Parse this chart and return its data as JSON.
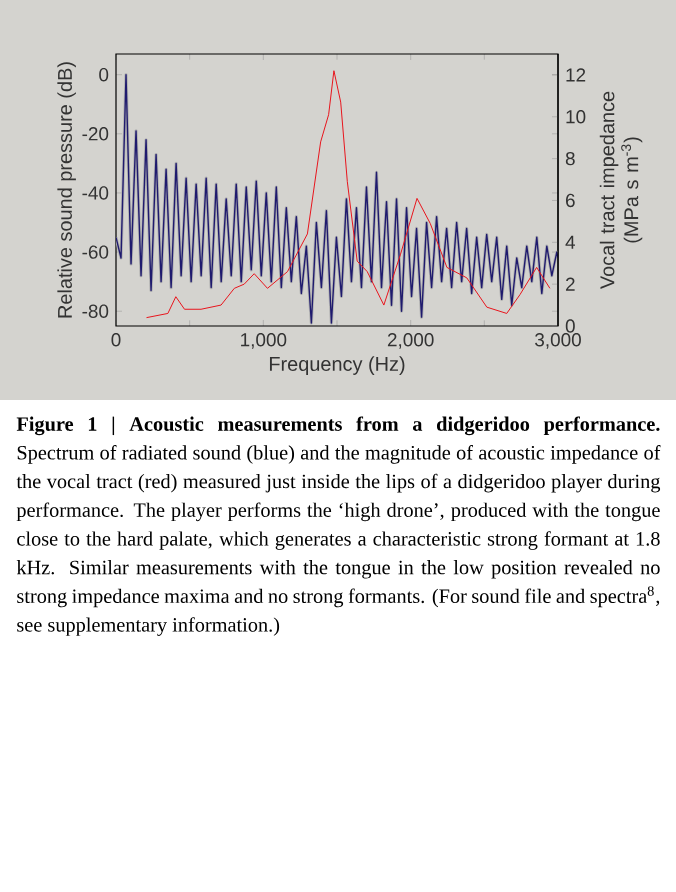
{
  "chart_data": {
    "type": "line",
    "xlabel": "Frequency (Hz)",
    "ylabel": "Relative sound pressure (dB)",
    "y2label": "Vocal tract impedance (MPa s m$^{-3}$)",
    "xlim": [
      0,
      3000
    ],
    "xticks": [
      0,
      {
        "value": 1000,
        "label": "1,000"
      },
      {
        "value": 2000,
        "label": "2,000"
      },
      {
        "value": 3000,
        "label": "3,000"
      }
    ],
    "ylim": [
      -85,
      7
    ],
    "yticks": [
      -80,
      -60,
      -40,
      -20,
      0
    ],
    "y2lim": [
      0,
      13
    ],
    "y2ticks": [
      0,
      2,
      4,
      6,
      8,
      10,
      12
    ],
    "grid": false,
    "marker": "none",
    "line_style": "solid",
    "series": [
      {
        "color": "#1f1a6e",
        "x": [
          0,
          34,
          68,
          102,
          136,
          170,
          204,
          238,
          272,
          306,
          340,
          374,
          408,
          442,
          476,
          510,
          544,
          578,
          612,
          646,
          680,
          714,
          748,
          782,
          816,
          850,
          884,
          918,
          952,
          986,
          1020,
          1054,
          1088,
          1122,
          1156,
          1190,
          1224,
          1258,
          1292,
          1326,
          1360,
          1394,
          1428,
          1462,
          1496,
          1530,
          1564,
          1598,
          1632,
          1666,
          1700,
          1734,
          1768,
          1802,
          1836,
          1870,
          1904,
          1938,
          1972,
          2006,
          2040,
          2074,
          2108,
          2142,
          2176,
          2210,
          2244,
          2278,
          2312,
          2346,
          2380,
          2414,
          2448,
          2482,
          2516,
          2550,
          2584,
          2618,
          2652,
          2686,
          2720,
          2754,
          2788,
          2822,
          2856,
          2890,
          2924,
          2958,
          2992,
          3000
        ],
        "values": [
          -55,
          -62,
          0,
          -64,
          -19,
          -68,
          -22,
          -73,
          -27,
          -70,
          -32,
          -72,
          -30,
          -68,
          -35,
          -70,
          -37,
          -68,
          -35,
          -72,
          -37,
          -70,
          -42,
          -68,
          -37,
          -70,
          -38,
          -66,
          -36,
          -68,
          -40,
          -70,
          -38,
          -72,
          -45,
          -70,
          -48,
          -74,
          -58,
          -84,
          -50,
          -72,
          -46,
          -84,
          -55,
          -75,
          -42,
          -70,
          -45,
          -72,
          -38,
          -70,
          -33,
          -72,
          -43,
          -78,
          -42,
          -80,
          -45,
          -75,
          -52,
          -82,
          -50,
          -72,
          -48,
          -70,
          -52,
          -72,
          -50,
          -70,
          -52,
          -74,
          -55,
          -72,
          -54,
          -70,
          -55,
          -76,
          -58,
          -78,
          -62,
          -72,
          -58,
          -70,
          -55,
          -74,
          -58,
          -68,
          -60,
          -62
        ]
      },
      {
        "color": "#e8141c",
        "axis": "y2",
        "x": [
          207,
          352,
          406,
          465,
          577,
          713,
          803,
          870,
          938,
          1028,
          1164,
          1299,
          1389,
          1443,
          1479,
          1525,
          1570,
          1637,
          1705,
          1818,
          1930,
          2043,
          2133,
          2246,
          2381,
          2517,
          2652,
          2742,
          2855,
          2945
        ],
        "values": [
          0.4,
          0.6,
          1.4,
          0.8,
          0.8,
          1.0,
          1.8,
          2.0,
          2.5,
          1.8,
          2.6,
          4.4,
          8.8,
          10.1,
          12.2,
          10.7,
          6.9,
          3.1,
          2.6,
          1.0,
          3.4,
          6.1,
          4.9,
          2.8,
          2.3,
          0.9,
          0.6,
          1.5,
          2.8,
          1.8
        ]
      }
    ],
    "annotations": [
      "**Figure 1 | Acoustic measurements from a didgeridoo performance.** Spectrum of radiated sound (blue) and the magnitude of acoustic impedance of the vocal tract (red) measured just inside the lips of a didgeridoo player during performance. The player performs the ‘high drone’, produced with the tongue close to the hard palate, which generates a characteristic strong formant at 1.8 kHz. Similar measurements with the tongue in the low position revealed no strong impedance maxima and no strong formants. (For sound file and spectra$^{8}$, see supplementary information.)"
    ]
  }
}
